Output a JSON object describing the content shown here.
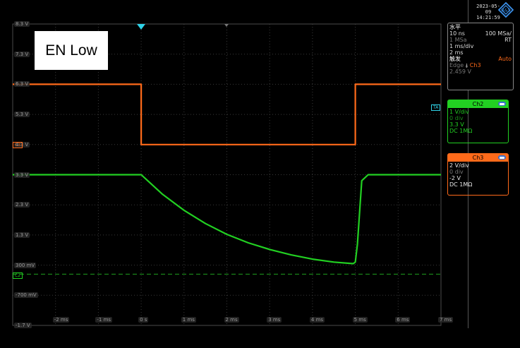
{
  "annotation": "EN Low",
  "clock": {
    "date": "2023-05-09",
    "time": "14:21:59"
  },
  "horizontal": {
    "title": "水平",
    "resolution": "10 ns",
    "sample_rate": "100 MSa/",
    "record_length": "1 MSa",
    "mode": "RT",
    "timebase": "1 ms/div",
    "position": "2 ms"
  },
  "trigger": {
    "title": "触发",
    "mode": "Auto",
    "type": "Edge",
    "edge": "⤈",
    "source": "Ch3",
    "level": "2.459 V"
  },
  "channels": [
    {
      "name": "Ch2",
      "scale": "1 V/div",
      "position": "0 div",
      "offset": "3.3 V",
      "coupling": "DC 1MΩ",
      "color": "#22d022"
    },
    {
      "name": "Ch3",
      "scale": "2 V/div",
      "position": "0 div",
      "offset": "-2 V",
      "coupling": "DC 1MΩ",
      "color": "#ff6a1a"
    }
  ],
  "y_labels": [
    "8.3 V",
    "7.3 V",
    "6.3 V",
    "5.3 V",
    "4.3 V",
    "3.3 V",
    "2.3 V",
    "1.3 V",
    "300 mV",
    "-700 mV",
    "-1.7 V"
  ],
  "x_labels": [
    "-2 ms",
    "-1 ms",
    "0 s",
    "1 ms",
    "2 ms",
    "3 ms",
    "4 ms",
    "5 ms",
    "6 ms",
    "7 ms"
  ],
  "markers": {
    "ch3_ref": "C3",
    "ch2_ref": "C2",
    "trigger_ref": "TA"
  },
  "chart_data": {
    "type": "line",
    "xlabel": "",
    "ylabel": "",
    "xlim": [
      -3,
      7
    ],
    "ylim": [
      -1.7,
      8.3
    ],
    "series": [
      {
        "name": "Ch2",
        "x": [
          -3,
          0,
          0.5,
          1,
          1.5,
          2,
          2.5,
          3,
          3.5,
          4,
          4.5,
          4.95,
          5.0,
          5.05,
          5.15,
          5.3,
          7
        ],
        "y": [
          3.3,
          3.3,
          2.65,
          2.12,
          1.68,
          1.32,
          1.04,
          0.82,
          0.64,
          0.5,
          0.4,
          0.35,
          0.4,
          1.0,
          3.1,
          3.3,
          3.3
        ]
      },
      {
        "name": "Ch3",
        "x": [
          -3,
          0,
          0,
          5,
          5,
          7
        ],
        "y": [
          6.3,
          6.3,
          4.3,
          4.3,
          6.3,
          6.3
        ]
      }
    ]
  }
}
